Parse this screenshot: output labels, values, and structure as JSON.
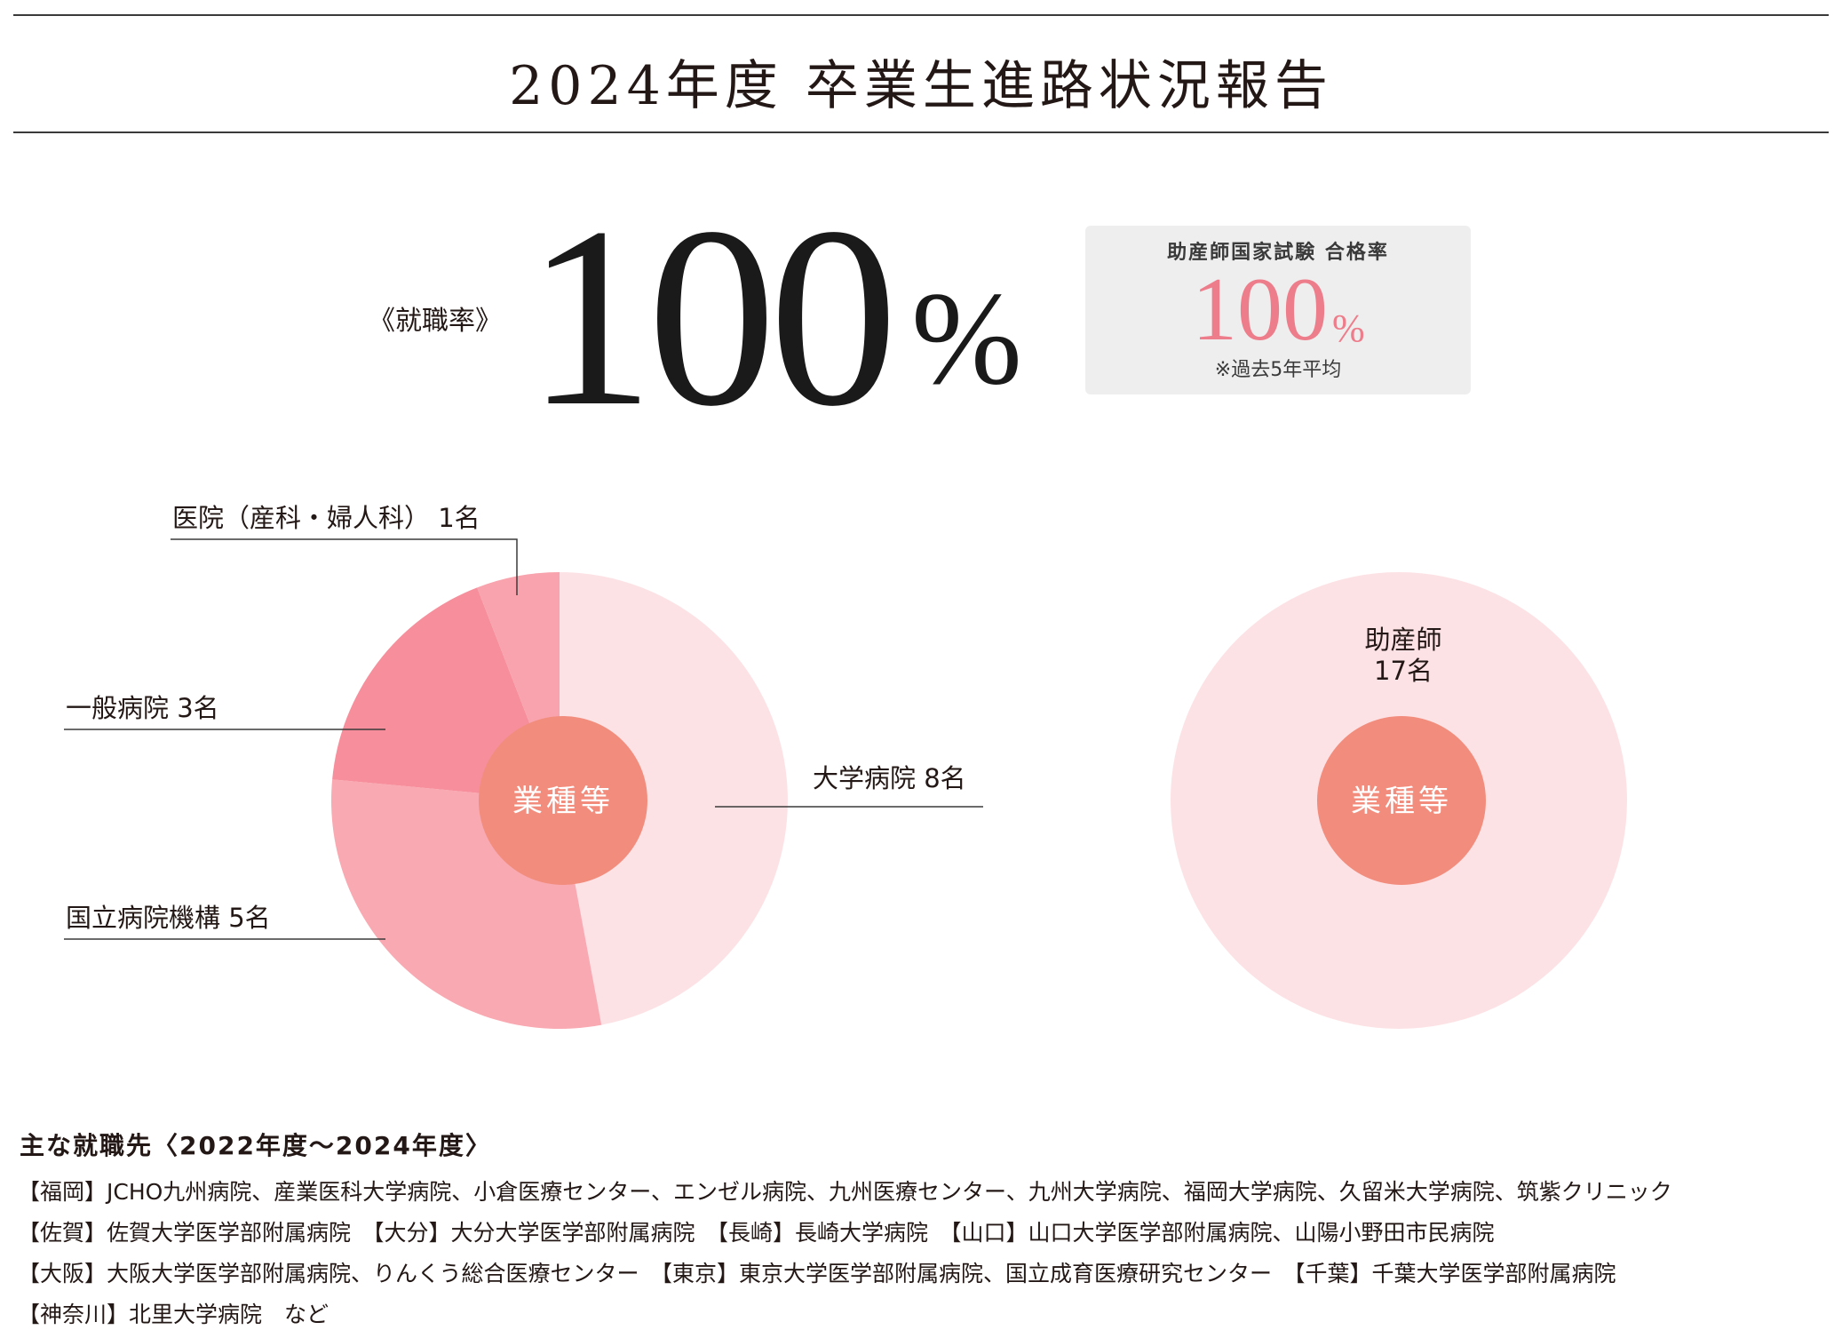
{
  "header": {
    "title": "2024年度 卒業生進路状況報告"
  },
  "employment_rate": {
    "label": "《就職率》",
    "value": "100",
    "unit": "%"
  },
  "exam_box": {
    "title": "助産師国家試験 合格率",
    "value": "100",
    "unit": "%",
    "note": "※過去5年平均"
  },
  "colors": {
    "slice_university": "#fde2e5",
    "slice_national": "#f9a9b2",
    "slice_general": "#f68e9b",
    "slice_clinic": "#f8a3ad",
    "center": "#f28c7c",
    "right_pie": "#fde2e5",
    "exam_accent": "#ee7d8b"
  },
  "chart_data": [
    {
      "type": "pie",
      "center_label": "業種等",
      "slices": [
        {
          "label": "大学病院 8名",
          "value": 8
        },
        {
          "label": "国立病院機構 5名",
          "value": 5
        },
        {
          "label": "一般病院 3名",
          "value": 3
        },
        {
          "label": "医院（産科・婦人科） 1名",
          "value": 1
        }
      ]
    },
    {
      "type": "pie",
      "center_label": "業種等",
      "slices": [
        {
          "label": "助産師",
          "sublabel": "17名",
          "value": 17
        }
      ]
    }
  ],
  "employers": {
    "heading": "主な就職先〈2022年度〜2024年度〉",
    "lines": [
      "【福岡】JCHO九州病院、産業医科大学病院、小倉医療センター、エンゼル病院、九州医療センター、九州大学病院、福岡大学病院、久留米大学病院、筑紫クリニック",
      "【佐賀】佐賀大学医学部附属病院　【大分】大分大学医学部附属病院　【長崎】長崎大学病院　【山口】山口大学医学部附属病院、山陽小野田市民病院",
      "【大阪】大阪大学医学部附属病院、りんくう総合医療センター　【東京】東京大学医学部附属病院、国立成育医療研究センター　【千葉】千葉大学医学部附属病院",
      "【神奈川】北里大学病院　など"
    ]
  }
}
